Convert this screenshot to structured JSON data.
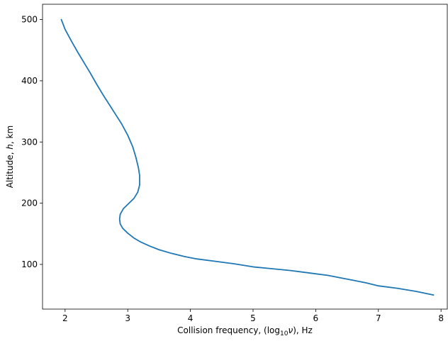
{
  "chart_data": {
    "type": "line",
    "title": "",
    "xlabel": {
      "prefix": "Collision frequency, (log",
      "sub": "10",
      "symbol": "ν",
      "suffix": "), Hz"
    },
    "ylabel": {
      "prefix": "Altitude, ",
      "symbol": "h",
      "suffix": ", km"
    },
    "xlim": [
      1.64,
      8.1
    ],
    "ylim": [
      27,
      525
    ],
    "xticks": [
      2,
      3,
      4,
      5,
      6,
      7,
      8
    ],
    "yticks": [
      100,
      200,
      300,
      400,
      500
    ],
    "grid": false,
    "legend": "none",
    "series": [
      {
        "color": "#1f77b4",
        "points": [
          [
            1.94,
            500
          ],
          [
            2.0,
            484
          ],
          [
            2.1,
            465
          ],
          [
            2.2,
            447
          ],
          [
            2.3,
            430
          ],
          [
            2.4,
            413
          ],
          [
            2.5,
            395
          ],
          [
            2.6,
            378
          ],
          [
            2.7,
            362
          ],
          [
            2.8,
            346
          ],
          [
            2.9,
            330
          ],
          [
            3.0,
            311
          ],
          [
            3.08,
            292
          ],
          [
            3.13,
            275
          ],
          [
            3.17,
            258
          ],
          [
            3.19,
            245
          ],
          [
            3.19,
            230
          ],
          [
            3.16,
            218
          ],
          [
            3.1,
            208
          ],
          [
            3.0,
            198
          ],
          [
            2.93,
            191
          ],
          [
            2.88,
            182
          ],
          [
            2.87,
            174
          ],
          [
            2.88,
            166
          ],
          [
            2.92,
            159
          ],
          [
            3.0,
            151
          ],
          [
            3.1,
            143
          ],
          [
            3.2,
            137
          ],
          [
            3.35,
            130
          ],
          [
            3.5,
            124
          ],
          [
            3.7,
            118
          ],
          [
            3.9,
            113
          ],
          [
            4.1,
            109
          ],
          [
            4.4,
            105
          ],
          [
            4.7,
            101
          ],
          [
            5.0,
            96
          ],
          [
            5.3,
            93
          ],
          [
            5.6,
            90
          ],
          [
            5.9,
            86
          ],
          [
            6.2,
            82
          ],
          [
            6.4,
            78
          ],
          [
            6.6,
            74
          ],
          [
            6.8,
            70
          ],
          [
            7.0,
            65
          ],
          [
            7.3,
            61
          ],
          [
            7.6,
            56
          ],
          [
            7.88,
            50
          ]
        ]
      }
    ]
  }
}
